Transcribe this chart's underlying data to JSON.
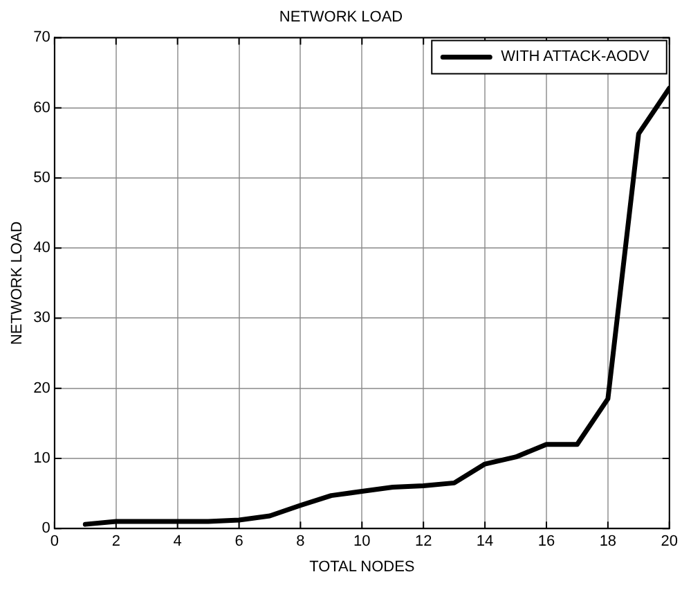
{
  "chart_data": {
    "type": "line",
    "title": "NETWORK LOAD",
    "xlabel": "TOTAL NODES",
    "ylabel": "NETWORK LOAD",
    "x": [
      1,
      2,
      3,
      4,
      5,
      6,
      7,
      8,
      9,
      10,
      11,
      12,
      13,
      14,
      15,
      16,
      17,
      18,
      19,
      20
    ],
    "series": [
      {
        "name": "WITH ATTACK-AODV",
        "color": "#000000",
        "values": [
          0.6,
          1,
          1,
          1,
          1,
          1.2,
          1.8,
          3.3,
          4.7,
          5.3,
          5.9,
          6.1,
          6.5,
          9.2,
          10.2,
          12,
          12,
          18.5,
          56.3,
          62.8
        ]
      }
    ],
    "xlim": [
      0,
      20
    ],
    "xticks": [
      0,
      2,
      4,
      6,
      8,
      10,
      12,
      14,
      16,
      18,
      20
    ],
    "ylim": [
      0,
      70
    ],
    "yticks": [
      0,
      10,
      20,
      30,
      40,
      50,
      60,
      70
    ],
    "grid": true,
    "legend": "top right",
    "marker": "none",
    "line_style": "solid"
  }
}
